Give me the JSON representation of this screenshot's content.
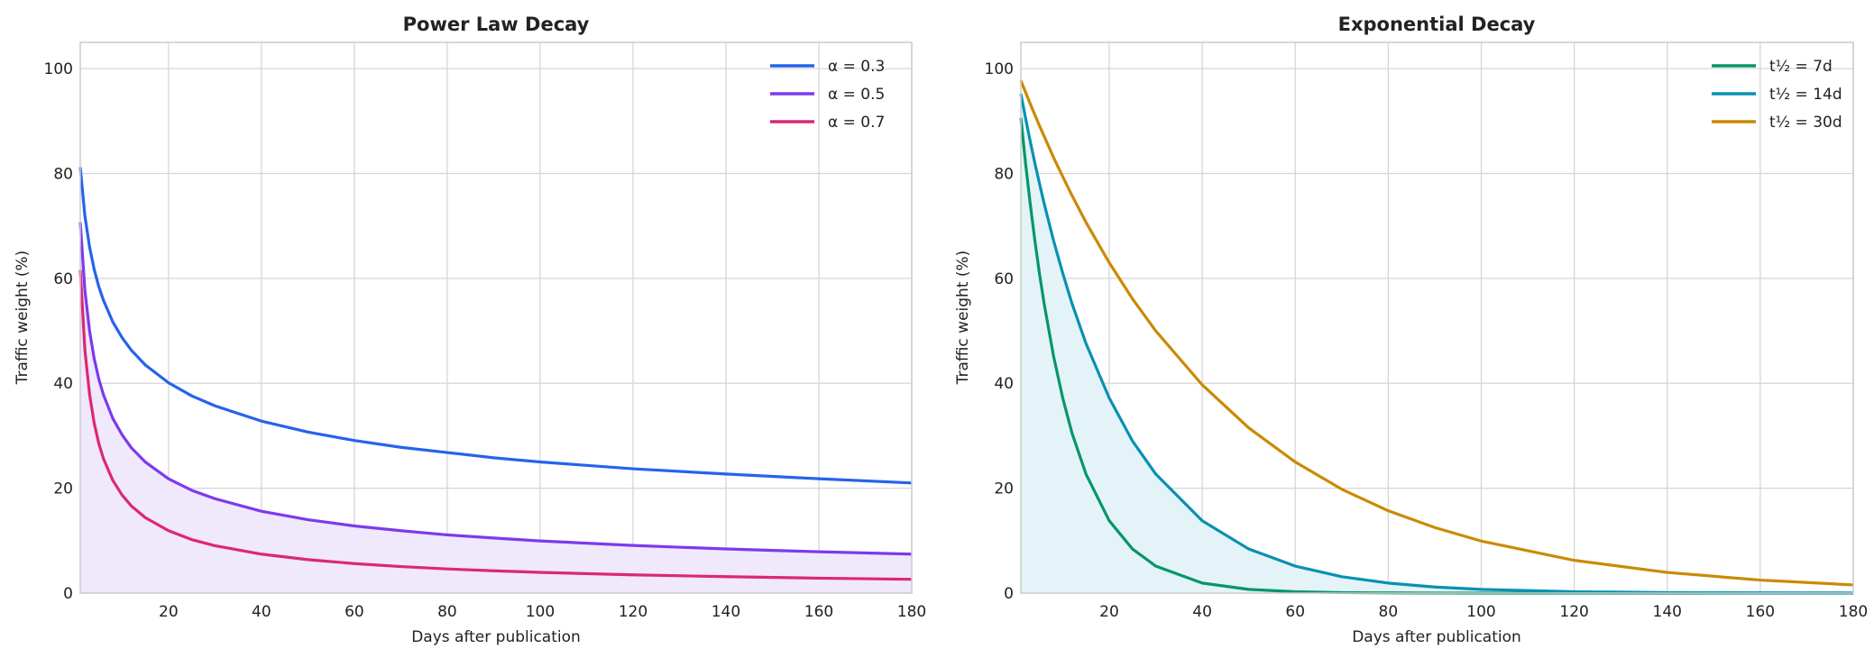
{
  "chart_data": [
    {
      "type": "line",
      "title": "Power Law Decay",
      "xlabel": "Days after publication",
      "ylabel": "Traffic weight (%)",
      "xlim": [
        1,
        180
      ],
      "ylim": [
        0,
        105
      ],
      "xticks": [
        20,
        40,
        60,
        80,
        100,
        120,
        140,
        160,
        180
      ],
      "yticks": [
        0,
        20,
        40,
        60,
        80,
        100
      ],
      "grid": true,
      "legend_placement": "top-right",
      "fill_under_series": "α = 0.5",
      "fill_color": "#f0e8fb",
      "x": [
        1,
        2,
        3,
        4,
        5,
        6,
        8,
        10,
        12,
        15,
        20,
        25,
        30,
        40,
        50,
        60,
        70,
        80,
        90,
        100,
        120,
        140,
        160,
        180
      ],
      "series": [
        {
          "name": "α = 0.3",
          "color": "#2563eb",
          "values": [
            81.2,
            71.9,
            66.0,
            61.7,
            58.4,
            55.8,
            51.7,
            48.7,
            46.3,
            43.5,
            40.1,
            37.6,
            35.7,
            32.8,
            30.7,
            29.1,
            27.8,
            26.8,
            25.8,
            25.0,
            23.7,
            22.7,
            21.8,
            21.0
          ]
        },
        {
          "name": "α = 0.5",
          "color": "#7c3aed",
          "values": [
            70.7,
            57.7,
            50.0,
            44.7,
            40.8,
            37.8,
            33.3,
            30.2,
            27.7,
            25.0,
            21.8,
            19.6,
            18.0,
            15.6,
            14.0,
            12.8,
            11.9,
            11.1,
            10.5,
            9.95,
            9.09,
            8.42,
            7.88,
            7.43
          ]
        },
        {
          "name": "α = 0.7",
          "color": "#db2777",
          "values": [
            61.6,
            46.3,
            37.9,
            32.4,
            28.5,
            25.6,
            21.5,
            18.7,
            16.6,
            14.4,
            11.9,
            10.2,
            9.04,
            7.43,
            6.38,
            5.63,
            5.06,
            4.61,
            4.25,
            3.95,
            3.48,
            3.13,
            2.85,
            2.63
          ]
        }
      ]
    },
    {
      "type": "line",
      "title": "Exponential Decay",
      "xlabel": "Days after publication",
      "ylabel": "Traffic weight (%)",
      "xlim": [
        1,
        180
      ],
      "ylim": [
        0,
        105
      ],
      "xticks": [
        20,
        40,
        60,
        80,
        100,
        120,
        140,
        160,
        180
      ],
      "yticks": [
        0,
        20,
        40,
        60,
        80,
        100
      ],
      "grid": true,
      "legend_placement": "top-right",
      "fill_under_series": "t½ = 14d",
      "fill_color": "#e4f3f7",
      "x": [
        1,
        2,
        3,
        4,
        5,
        6,
        8,
        10,
        12,
        15,
        20,
        25,
        30,
        40,
        50,
        60,
        70,
        80,
        90,
        100,
        120,
        140,
        160,
        180
      ],
      "series": [
        {
          "name": "t½ = 7d",
          "color": "#059669",
          "values": [
            90.6,
            82.0,
            74.3,
            67.3,
            60.9,
            55.2,
            45.3,
            37.2,
            30.5,
            22.7,
            13.8,
            8.41,
            5.15,
            1.91,
            0.71,
            0.26,
            0.1,
            0.04,
            0.01,
            0.005,
            0,
            0,
            0,
            0
          ]
        },
        {
          "name": "t½ = 14d",
          "color": "#0891b2",
          "values": [
            95.2,
            90.6,
            86.2,
            82.0,
            78.1,
            74.3,
            67.3,
            61.0,
            55.2,
            47.6,
            37.2,
            29.0,
            22.7,
            13.8,
            8.41,
            5.15,
            3.13,
            1.91,
            1.16,
            0.71,
            0.26,
            0.1,
            0.04,
            0.01
          ]
        },
        {
          "name": "t½ = 30d",
          "color": "#ca8a04",
          "values": [
            97.7,
            95.5,
            93.3,
            91.2,
            89.1,
            87.1,
            83.1,
            79.4,
            75.8,
            70.7,
            63.0,
            56.1,
            50.0,
            39.7,
            31.5,
            25.0,
            19.8,
            15.7,
            12.5,
            9.92,
            6.25,
            3.94,
            2.48,
            1.56
          ]
        }
      ]
    }
  ]
}
